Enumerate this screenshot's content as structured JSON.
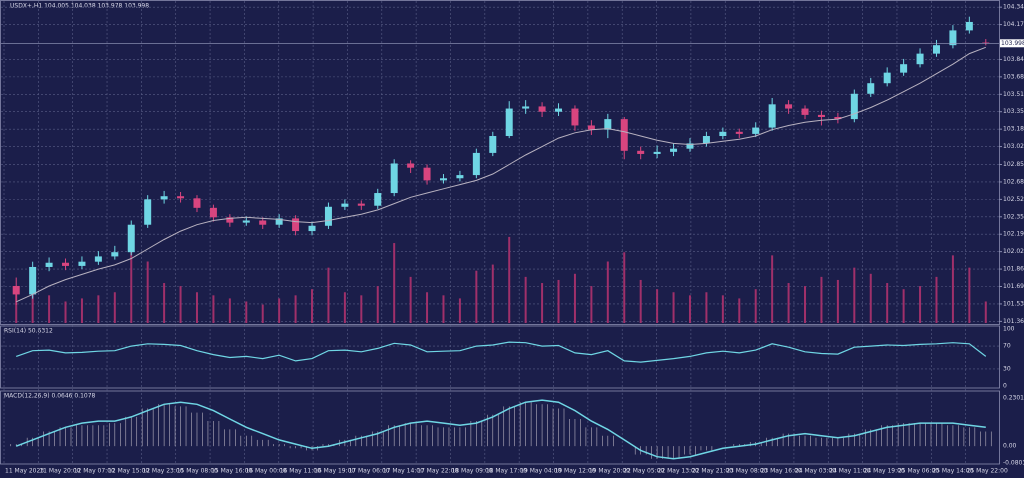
{
  "chart_data": {
    "type": "candlestick",
    "title": "USDX+,H1 104.005 104.038 103.978 103.998",
    "current_price": {
      "value": 103.998,
      "label": "103.998"
    },
    "ylim": [
      101.34,
      104.37
    ],
    "yticks": [
      {
        "value": 104.34,
        "label": "104.340"
      },
      104.175,
      {
        "value": 103.845,
        "label": "103.845"
      },
      {
        "value": 103.68,
        "label": "103.680"
      },
      103.515,
      {
        "value": 103.35,
        "label": "103.350"
      },
      103.185,
      {
        "value": 103.02,
        "label": "103.020"
      },
      {
        "value": 102.85,
        "label": "102.850"
      },
      102.685,
      {
        "value": 102.52,
        "label": "102.520"
      },
      102.355,
      {
        "value": 102.19,
        "label": "102.190"
      },
      102.025,
      {
        "value": 101.86,
        "label": "101.860"
      },
      101.695,
      {
        "value": 101.53,
        "label": "101.530"
      },
      101.365
    ],
    "grid": true,
    "up_color": "#6fd6e4",
    "down_color": "#d8457f",
    "ma_color": "#b8b2c0",
    "volume_color": "#a0306a",
    "x_labels": [
      "11 May 2023",
      "11 May 20:00",
      "12 May 07:00",
      "12 May 15:00",
      "12 May 23:00",
      "15 May 08:00",
      "15 May 16:00",
      "16 May 00:00",
      "16 May 11:00",
      "16 May 19:00",
      "17 May 06:00",
      "17 May 14:00",
      "17 May 22:00",
      "18 May 09:00",
      "18 May 17:00",
      "19 May 04:00",
      "19 May 12:00",
      "19 May 20:00",
      "22 May 05:00",
      "22 May 13:00",
      "22 May 21:00",
      "23 May 08:00",
      "23 May 16:00",
      "24 May 03:00",
      "24 May 11:00",
      "24 May 19:00",
      "25 May 06:00",
      "25 May 14:00",
      "25 May 22:00"
    ],
    "open": [
      101.7,
      101.62,
      101.88,
      101.92,
      101.89,
      101.93,
      101.98,
      102.02,
      102.28,
      102.52,
      102.55,
      102.53,
      102.44,
      102.35,
      102.3,
      102.32,
      102.28,
      102.34,
      102.22,
      102.27,
      102.45,
      102.48,
      102.46,
      102.58,
      102.86,
      102.82,
      102.7,
      102.72,
      102.75,
      102.96,
      103.12,
      103.38,
      103.4,
      103.35,
      103.38,
      103.22,
      103.18,
      103.28,
      102.98,
      102.95,
      102.97,
      103.0,
      103.05,
      103.12,
      103.16,
      103.14,
      103.2,
      103.42,
      103.38,
      103.32,
      103.3,
      103.28,
      103.52,
      103.62,
      103.72,
      103.8,
      103.9,
      103.98,
      104.12,
      104.005
    ],
    "high": [
      101.78,
      101.93,
      101.97,
      101.96,
      101.98,
      102.03,
      102.08,
      102.32,
      102.56,
      102.6,
      102.59,
      102.56,
      102.47,
      102.38,
      102.36,
      102.35,
      102.38,
      102.37,
      102.31,
      102.49,
      102.52,
      102.51,
      102.62,
      102.9,
      102.89,
      102.85,
      102.76,
      102.79,
      103.0,
      103.16,
      103.45,
      103.46,
      103.44,
      103.43,
      103.41,
      103.27,
      103.33,
      103.3,
      103.02,
      103.03,
      103.05,
      103.1,
      103.16,
      103.2,
      103.19,
      103.25,
      103.48,
      103.46,
      103.41,
      103.36,
      103.34,
      103.56,
      103.67,
      103.77,
      103.85,
      103.95,
      104.03,
      104.17,
      104.25,
      104.038
    ],
    "low": [
      101.52,
      101.58,
      101.84,
      101.85,
      101.86,
      101.9,
      101.95,
      101.99,
      102.25,
      102.48,
      102.49,
      102.4,
      102.31,
      102.26,
      102.27,
      102.24,
      102.25,
      102.18,
      102.18,
      102.24,
      102.42,
      102.42,
      102.43,
      102.55,
      102.77,
      102.66,
      102.67,
      102.69,
      102.72,
      102.93,
      103.1,
      103.33,
      103.3,
      103.31,
      103.17,
      103.13,
      103.1,
      102.9,
      102.9,
      102.91,
      102.93,
      102.97,
      103.02,
      103.09,
      103.1,
      103.11,
      103.17,
      103.33,
      103.28,
      103.22,
      103.24,
      103.25,
      103.49,
      103.59,
      103.69,
      103.77,
      103.87,
      103.95,
      104.09,
      103.978
    ],
    "close": [
      101.62,
      101.88,
      101.92,
      101.89,
      101.93,
      101.98,
      102.02,
      102.28,
      102.52,
      102.55,
      102.53,
      102.44,
      102.35,
      102.3,
      102.32,
      102.28,
      102.34,
      102.22,
      102.27,
      102.45,
      102.48,
      102.46,
      102.58,
      102.86,
      102.82,
      102.7,
      102.72,
      102.75,
      102.96,
      103.12,
      103.38,
      103.4,
      103.35,
      103.38,
      103.22,
      103.18,
      103.28,
      102.98,
      102.95,
      102.97,
      103.0,
      103.05,
      103.12,
      103.16,
      103.14,
      103.2,
      103.42,
      103.38,
      103.32,
      103.3,
      103.28,
      103.52,
      103.62,
      103.72,
      103.8,
      103.9,
      103.98,
      104.12,
      104.2,
      103.998
    ],
    "ma": [
      101.55,
      101.62,
      101.7,
      101.76,
      101.81,
      101.86,
      101.9,
      101.96,
      102.05,
      102.14,
      102.22,
      102.28,
      102.32,
      102.34,
      102.35,
      102.34,
      102.33,
      102.31,
      102.3,
      102.32,
      102.35,
      102.38,
      102.42,
      102.48,
      102.54,
      102.58,
      102.62,
      102.66,
      102.7,
      102.76,
      102.85,
      102.94,
      103.02,
      103.1,
      103.15,
      103.18,
      103.19,
      103.16,
      103.12,
      103.08,
      103.05,
      103.04,
      103.05,
      103.07,
      103.09,
      103.12,
      103.18,
      103.22,
      103.25,
      103.27,
      103.28,
      103.33,
      103.39,
      103.46,
      103.54,
      103.62,
      103.71,
      103.8,
      103.9,
      103.96
    ],
    "volume_lim": [
      0,
      4000
    ],
    "volume": [
      1200,
      1500,
      900,
      700,
      800,
      900,
      1000,
      2400,
      2000,
      1300,
      1200,
      1000,
      900,
      800,
      700,
      600,
      800,
      900,
      1100,
      1800,
      1000,
      900,
      1200,
      2600,
      1500,
      1000,
      900,
      800,
      1700,
      1900,
      2800,
      1500,
      1300,
      1400,
      1600,
      1200,
      2000,
      2300,
      1400,
      1100,
      1000,
      900,
      1000,
      900,
      800,
      1100,
      2200,
      1300,
      1200,
      1500,
      1400,
      1800,
      1600,
      1300,
      1100,
      1200,
      1500,
      2200,
      1800,
      700
    ],
    "rsi": {
      "label": "RSI(14) 50.6312",
      "ylim": [
        0,
        100
      ],
      "yticks": [
        100,
        70,
        30,
        0
      ],
      "levels": [
        70,
        30
      ],
      "color": "#6fd6e4",
      "values": [
        52,
        62,
        63,
        58,
        59,
        61,
        62,
        70,
        74,
        73,
        71,
        62,
        55,
        50,
        52,
        48,
        54,
        44,
        48,
        62,
        63,
        60,
        66,
        75,
        72,
        60,
        61,
        62,
        70,
        72,
        77,
        76,
        70,
        71,
        58,
        55,
        62,
        44,
        42,
        45,
        48,
        52,
        58,
        61,
        58,
        63,
        74,
        68,
        60,
        57,
        56,
        68,
        70,
        72,
        71,
        73,
        74,
        76,
        74,
        52
      ]
    },
    "macd": {
      "label": "MACD(12,26,9) 0.0646 0.1078",
      "ylim": [
        -0.0803,
        0.2301
      ],
      "yticks": [
        0.2301,
        {
          "value": 0,
          "label": "0.00"
        },
        -0.0803
      ],
      "color": "#6fd6e4",
      "hist_color": "#b8b2c0",
      "signal": [
        0.0,
        0.03,
        0.06,
        0.09,
        0.11,
        0.12,
        0.12,
        0.14,
        0.17,
        0.2,
        0.21,
        0.2,
        0.17,
        0.13,
        0.09,
        0.06,
        0.03,
        0.01,
        -0.01,
        0.0,
        0.02,
        0.04,
        0.06,
        0.09,
        0.11,
        0.12,
        0.11,
        0.1,
        0.11,
        0.14,
        0.18,
        0.21,
        0.22,
        0.21,
        0.17,
        0.12,
        0.08,
        0.03,
        -0.02,
        -0.05,
        -0.06,
        -0.05,
        -0.03,
        -0.01,
        0.0,
        0.01,
        0.03,
        0.05,
        0.06,
        0.05,
        0.04,
        0.05,
        0.07,
        0.09,
        0.1,
        0.11,
        0.11,
        0.11,
        0.1,
        0.09
      ],
      "hist": [
        0.01,
        0.04,
        0.07,
        0.09,
        0.1,
        0.1,
        0.11,
        0.14,
        0.18,
        0.2,
        0.19,
        0.16,
        0.12,
        0.08,
        0.05,
        0.03,
        0.01,
        -0.01,
        -0.02,
        0.01,
        0.03,
        0.05,
        0.07,
        0.1,
        0.11,
        0.1,
        0.09,
        0.09,
        0.12,
        0.15,
        0.19,
        0.21,
        0.2,
        0.18,
        0.13,
        0.09,
        0.05,
        0.0,
        -0.04,
        -0.06,
        -0.06,
        -0.04,
        -0.02,
        0.0,
        0.01,
        0.02,
        0.04,
        0.06,
        0.05,
        0.04,
        0.04,
        0.06,
        0.08,
        0.1,
        0.11,
        0.11,
        0.11,
        0.1,
        0.09,
        0.07
      ]
    }
  }
}
